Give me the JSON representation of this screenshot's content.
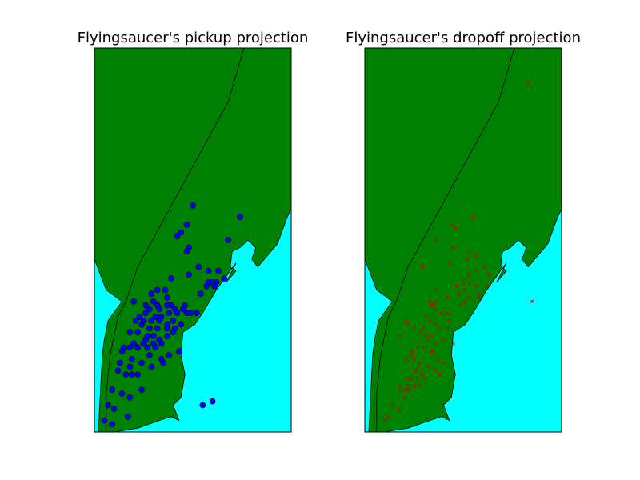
{
  "figure": {
    "background": "#ffffff",
    "land_color": "#008000",
    "water_color": "#00ffff",
    "border_color": "#000000"
  },
  "chart_data": [
    {
      "type": "scatter",
      "title": "Flyingsaucer's pickup projection",
      "xlabel": "",
      "ylabel": "",
      "xlim": [
        0,
        1
      ],
      "ylim": [
        0,
        1
      ],
      "grid": false,
      "axis_ticks": "none",
      "map_background": true,
      "series": [
        {
          "marker": "circle",
          "color": "#0000ff",
          "x": [
            0.5,
            0.74,
            0.47,
            0.44,
            0.42,
            0.68,
            0.48,
            0.47,
            0.53,
            0.58,
            0.63,
            0.48,
            0.39,
            0.36,
            0.32,
            0.29,
            0.37,
            0.32,
            0.39,
            0.46,
            0.54,
            0.62,
            0.66,
            0.57,
            0.61,
            0.58,
            0.6,
            0.3,
            0.2,
            0.26,
            0.28,
            0.33,
            0.37,
            0.41,
            0.45,
            0.49,
            0.26,
            0.23,
            0.31,
            0.34,
            0.38,
            0.42,
            0.47,
            0.52,
            0.21,
            0.25,
            0.29,
            0.33,
            0.37,
            0.4,
            0.44,
            0.24,
            0.28,
            0.32,
            0.37,
            0.41,
            0.18,
            0.22,
            0.27,
            0.3,
            0.33,
            0.37,
            0.2,
            0.25,
            0.3,
            0.34,
            0.15,
            0.18,
            0.22,
            0.27,
            0.31,
            0.14,
            0.19,
            0.24,
            0.28,
            0.13,
            0.18,
            0.22,
            0.12,
            0.16,
            0.09,
            0.14,
            0.18,
            0.24,
            0.07,
            0.1,
            0.05,
            0.09,
            0.17,
            0.55,
            0.6,
            0.29,
            0.35,
            0.34,
            0.38,
            0.4,
            0.26,
            0.43,
            0.19
          ],
          "y": [
            0.59,
            0.56,
            0.54,
            0.52,
            0.51,
            0.5,
            0.48,
            0.47,
            0.43,
            0.42,
            0.42,
            0.41,
            0.4,
            0.37,
            0.37,
            0.36,
            0.35,
            0.33,
            0.33,
            0.33,
            0.36,
            0.39,
            0.4,
            0.38,
            0.38,
            0.39,
            0.39,
            0.34,
            0.34,
            0.33,
            0.32,
            0.32,
            0.33,
            0.32,
            0.32,
            0.31,
            0.31,
            0.3,
            0.3,
            0.3,
            0.31,
            0.31,
            0.31,
            0.31,
            0.29,
            0.29,
            0.29,
            0.29,
            0.28,
            0.29,
            0.28,
            0.28,
            0.27,
            0.27,
            0.27,
            0.27,
            0.26,
            0.26,
            0.25,
            0.25,
            0.24,
            0.25,
            0.23,
            0.23,
            0.23,
            0.23,
            0.22,
            0.22,
            0.22,
            0.22,
            0.22,
            0.21,
            0.19,
            0.18,
            0.2,
            0.18,
            0.17,
            0.15,
            0.16,
            0.15,
            0.11,
            0.1,
            0.09,
            0.11,
            0.07,
            0.06,
            0.03,
            0.02,
            0.04,
            0.07,
            0.08,
            0.17,
            0.18,
            0.19,
            0.2,
            0.26,
            0.24,
            0.21,
            0.15
          ]
        }
      ]
    },
    {
      "type": "scatter",
      "title": "Flyingsaucer's dropoff projection",
      "xlabel": "",
      "ylabel": "",
      "xlim": [
        0,
        1
      ],
      "ylim": [
        0,
        1
      ],
      "grid": false,
      "axis_ticks": "none",
      "map_background": true,
      "series": [
        {
          "marker": "x",
          "color": "#cc0000",
          "x": [
            0.83,
            0.55,
            0.44,
            0.46,
            0.36,
            0.45,
            0.53,
            0.52,
            0.56,
            0.61,
            0.63,
            0.57,
            0.53,
            0.62,
            0.58,
            0.36,
            0.33,
            0.36,
            0.34,
            0.35,
            0.42,
            0.51,
            0.57,
            0.48,
            0.53,
            0.51,
            0.49,
            0.42,
            0.43,
            0.42,
            0.38,
            0.36,
            0.33,
            0.3,
            0.28,
            0.25,
            0.22,
            0.21,
            0.18,
            0.31,
            0.34,
            0.32,
            0.36,
            0.4,
            0.45,
            0.24,
            0.27,
            0.3,
            0.34,
            0.37,
            0.4,
            0.21,
            0.25,
            0.28,
            0.32,
            0.36,
            0.38,
            0.26,
            0.29,
            0.22,
            0.24,
            0.27,
            0.31,
            0.18,
            0.22,
            0.25,
            0.28,
            0.21,
            0.23,
            0.18,
            0.21,
            0.2,
            0.14,
            0.17,
            0.12,
            0.1,
            0.85,
            0.58,
            0.47,
            0.5,
            0.53,
            0.29,
            0.43,
            0.36,
            0.39,
            0.31,
            0.35,
            0.24,
            0.27,
            0.26
          ],
          "y": [
            0.91,
            0.56,
            0.54,
            0.53,
            0.5,
            0.48,
            0.47,
            0.45,
            0.46,
            0.43,
            0.41,
            0.42,
            0.39,
            0.38,
            0.36,
            0.34,
            0.34,
            0.32,
            0.33,
            0.33,
            0.35,
            0.37,
            0.38,
            0.36,
            0.35,
            0.34,
            0.33,
            0.31,
            0.29,
            0.27,
            0.27,
            0.28,
            0.29,
            0.27,
            0.26,
            0.27,
            0.28,
            0.29,
            0.25,
            0.25,
            0.25,
            0.24,
            0.23,
            0.24,
            0.23,
            0.21,
            0.22,
            0.22,
            0.21,
            0.19,
            0.18,
            0.19,
            0.19,
            0.18,
            0.17,
            0.16,
            0.15,
            0.16,
            0.15,
            0.14,
            0.14,
            0.14,
            0.14,
            0.12,
            0.12,
            0.12,
            0.12,
            0.11,
            0.11,
            0.11,
            0.11,
            0.09,
            0.07,
            0.06,
            0.04,
            0.03,
            0.34,
            0.35,
            0.38,
            0.39,
            0.41,
            0.43,
            0.44,
            0.37,
            0.31,
            0.3,
            0.21,
            0.2,
            0.17,
            0.12
          ]
        }
      ]
    }
  ]
}
